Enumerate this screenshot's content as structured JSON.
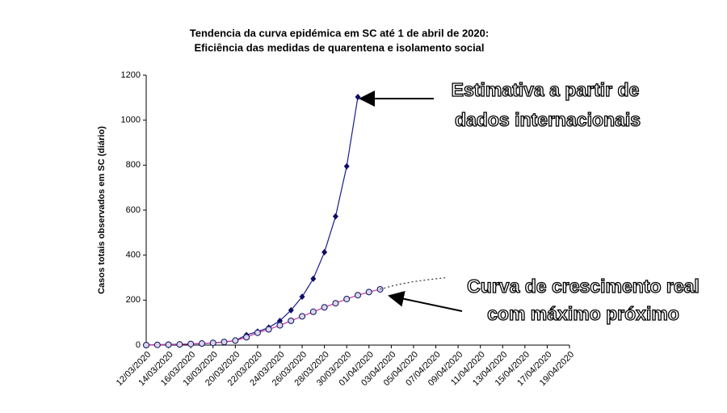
{
  "chart_data": {
    "type": "line",
    "title": "Tendencia da curva epidémica em SC até 1 de abril de 2020:",
    "subtitle": "Eficiência das medidas de quarentena e isolamento social",
    "y_label": "Casos totais observados em SC (diário)",
    "categories": [
      "12/03/2020",
      null,
      "14/03/2020",
      null,
      "16/03/2020",
      null,
      "18/03/2020",
      null,
      "20/03/2020",
      null,
      "22/03/2020",
      null,
      "24/03/2020",
      null,
      "26/03/2020",
      null,
      "28/03/2020",
      null,
      "30/03/2020",
      null,
      "01/04/2020",
      null,
      "03/04/2020",
      null,
      "05/04/2020",
      null,
      "07/04/2020",
      null,
      "09/04/2020",
      null,
      "11/04/2020",
      null,
      "13/04/2020",
      null,
      "15/04/2020",
      null,
      "17/04/2020",
      null,
      "19/04/2020"
    ],
    "series": [
      {
        "color": "#1a1a8c",
        "marker": "diamond",
        "dashed": false,
        "values": [
          0,
          2,
          3,
          4,
          5,
          7,
          10,
          14,
          20,
          45,
          60,
          78,
          108,
          155,
          215,
          295,
          413,
          572,
          795,
          1103,
          null,
          null,
          null,
          null,
          null,
          null,
          null,
          null,
          null,
          null,
          null,
          null,
          null,
          null,
          null,
          null,
          null,
          null,
          null
        ]
      },
      {
        "color": "#cc3399",
        "marker": "circle",
        "dashed": false,
        "values": [
          0,
          1,
          2,
          3,
          5,
          7,
          10,
          14,
          20,
          35,
          55,
          70,
          88,
          108,
          128,
          148,
          168,
          186,
          205,
          222,
          236,
          248,
          null,
          null,
          null,
          null,
          null,
          null,
          null,
          null,
          null,
          null,
          null,
          null,
          null,
          null,
          null,
          null,
          null
        ]
      },
      {
        "color": "#333333",
        "marker": "none",
        "dashed": true,
        "values": [
          null,
          null,
          null,
          null,
          null,
          null,
          null,
          null,
          null,
          null,
          null,
          null,
          null,
          null,
          null,
          null,
          null,
          null,
          null,
          null,
          null,
          248,
          262,
          273,
          282,
          289,
          295,
          300,
          null,
          null,
          null,
          null,
          null,
          null,
          null,
          null,
          null,
          null,
          null
        ]
      }
    ],
    "ylim": [
      0,
      1200
    ],
    "yticks": [
      0,
      200,
      400,
      600,
      800,
      1000,
      1200
    ],
    "annotations": [
      "Estimativa a partir de",
      "dados internacionais",
      "Curva de crescimento real",
      "com máximo próximo"
    ]
  }
}
